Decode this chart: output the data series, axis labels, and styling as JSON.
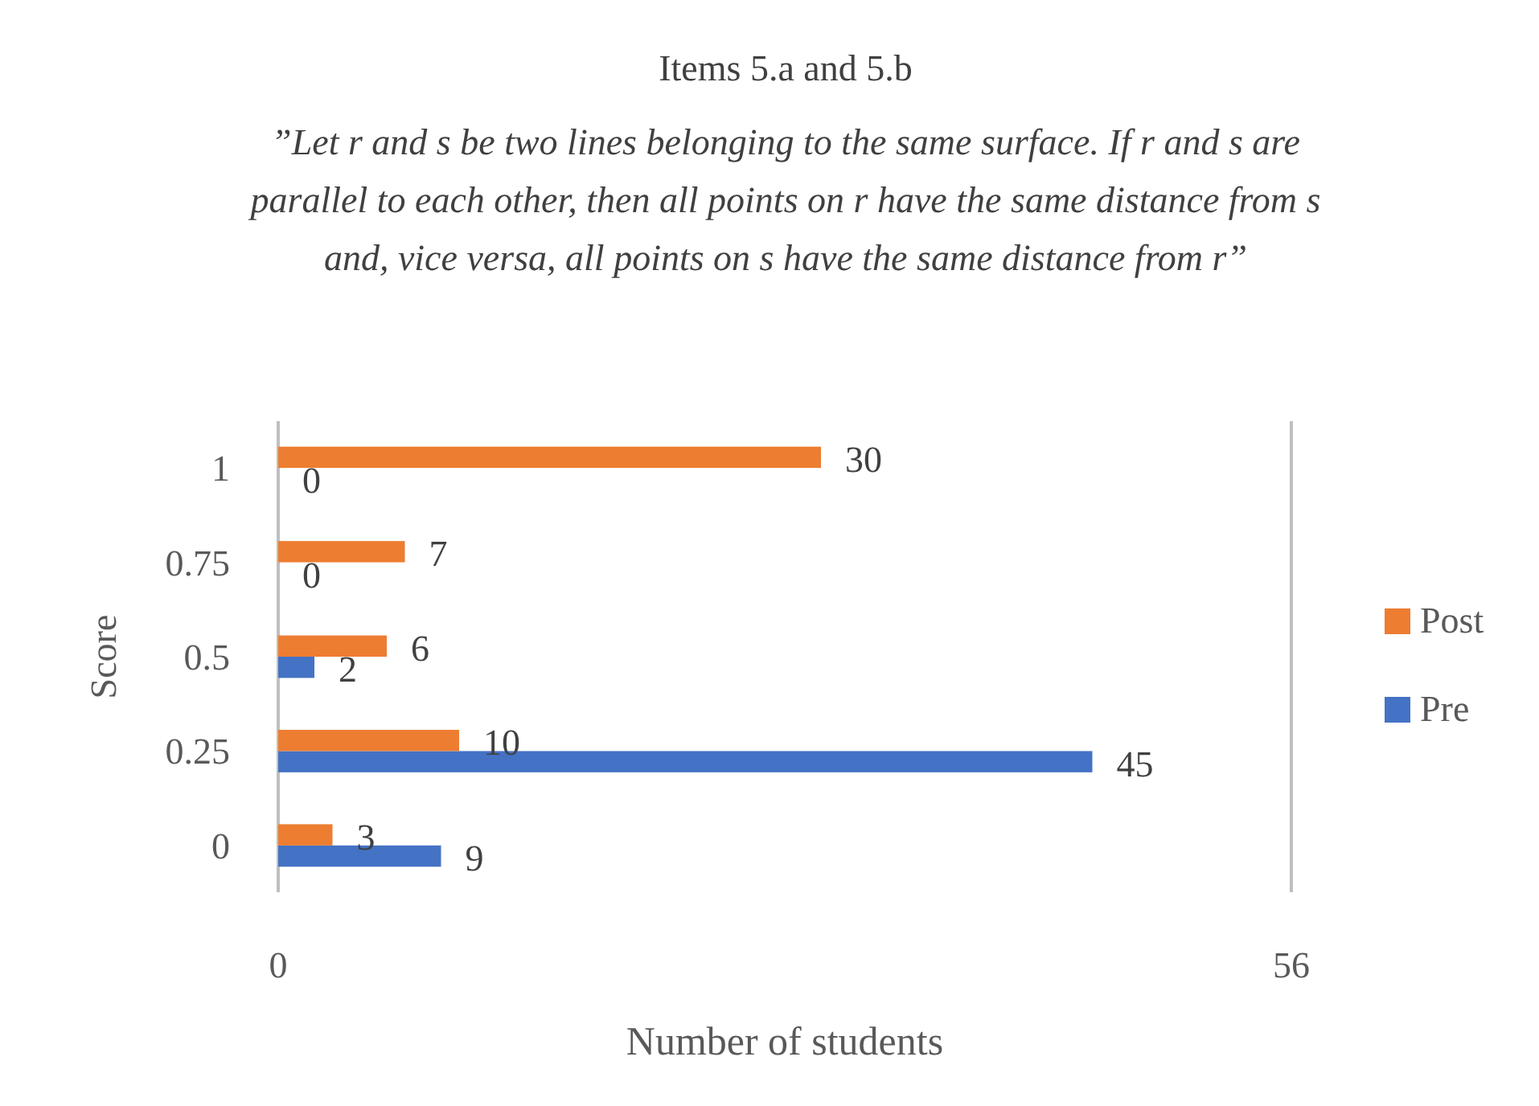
{
  "chart_data": {
    "type": "bar",
    "orientation": "horizontal",
    "title": "Items 5.a and 5.b",
    "subtitle": "”Let r and s be two lines belonging to the same surface. If r and s are parallel to each other, then all points on r have the same distance from s and, vice versa, all points on s have the same distance from r”",
    "xlabel": "Number of students",
    "ylabel": "Score",
    "categories": [
      "1",
      "0.75",
      "0.5",
      "0.25",
      "0"
    ],
    "series": [
      {
        "name": "Pre",
        "color": "#4472c4",
        "values": [
          0,
          0,
          2,
          45,
          9
        ]
      },
      {
        "name": "Post",
        "color": "#ed7d31",
        "values": [
          30,
          7,
          6,
          10,
          3
        ]
      }
    ],
    "xlim": [
      0,
      56
    ],
    "xticks": [
      0,
      56
    ],
    "legend": "right",
    "data_labels": true
  }
}
